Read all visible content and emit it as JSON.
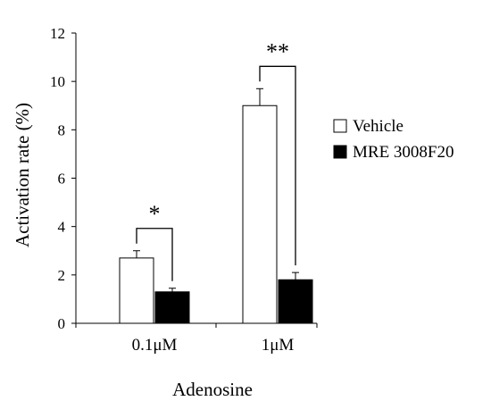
{
  "chart_data": {
    "type": "bar",
    "categories": [
      "0.1μM",
      "1μM"
    ],
    "xlabel": "Adenosine",
    "ylabel": "Activation rate (%)",
    "ylim": [
      0,
      12
    ],
    "yticks": [
      0,
      2,
      4,
      6,
      8,
      10,
      12
    ],
    "series": [
      {
        "name": "Vehicle",
        "values": [
          2.7,
          9.0
        ],
        "errors": [
          0.3,
          0.7
        ],
        "color": "#ffffff"
      },
      {
        "name": "MRE 3008F20",
        "values": [
          1.3,
          1.8
        ],
        "errors": [
          0.15,
          0.3
        ],
        "color": "#000000"
      }
    ],
    "significance": [
      {
        "category": "0.1μM",
        "label": "*"
      },
      {
        "category": "1μM",
        "label": "**"
      }
    ],
    "legend_position": "right",
    "grid": false
  }
}
